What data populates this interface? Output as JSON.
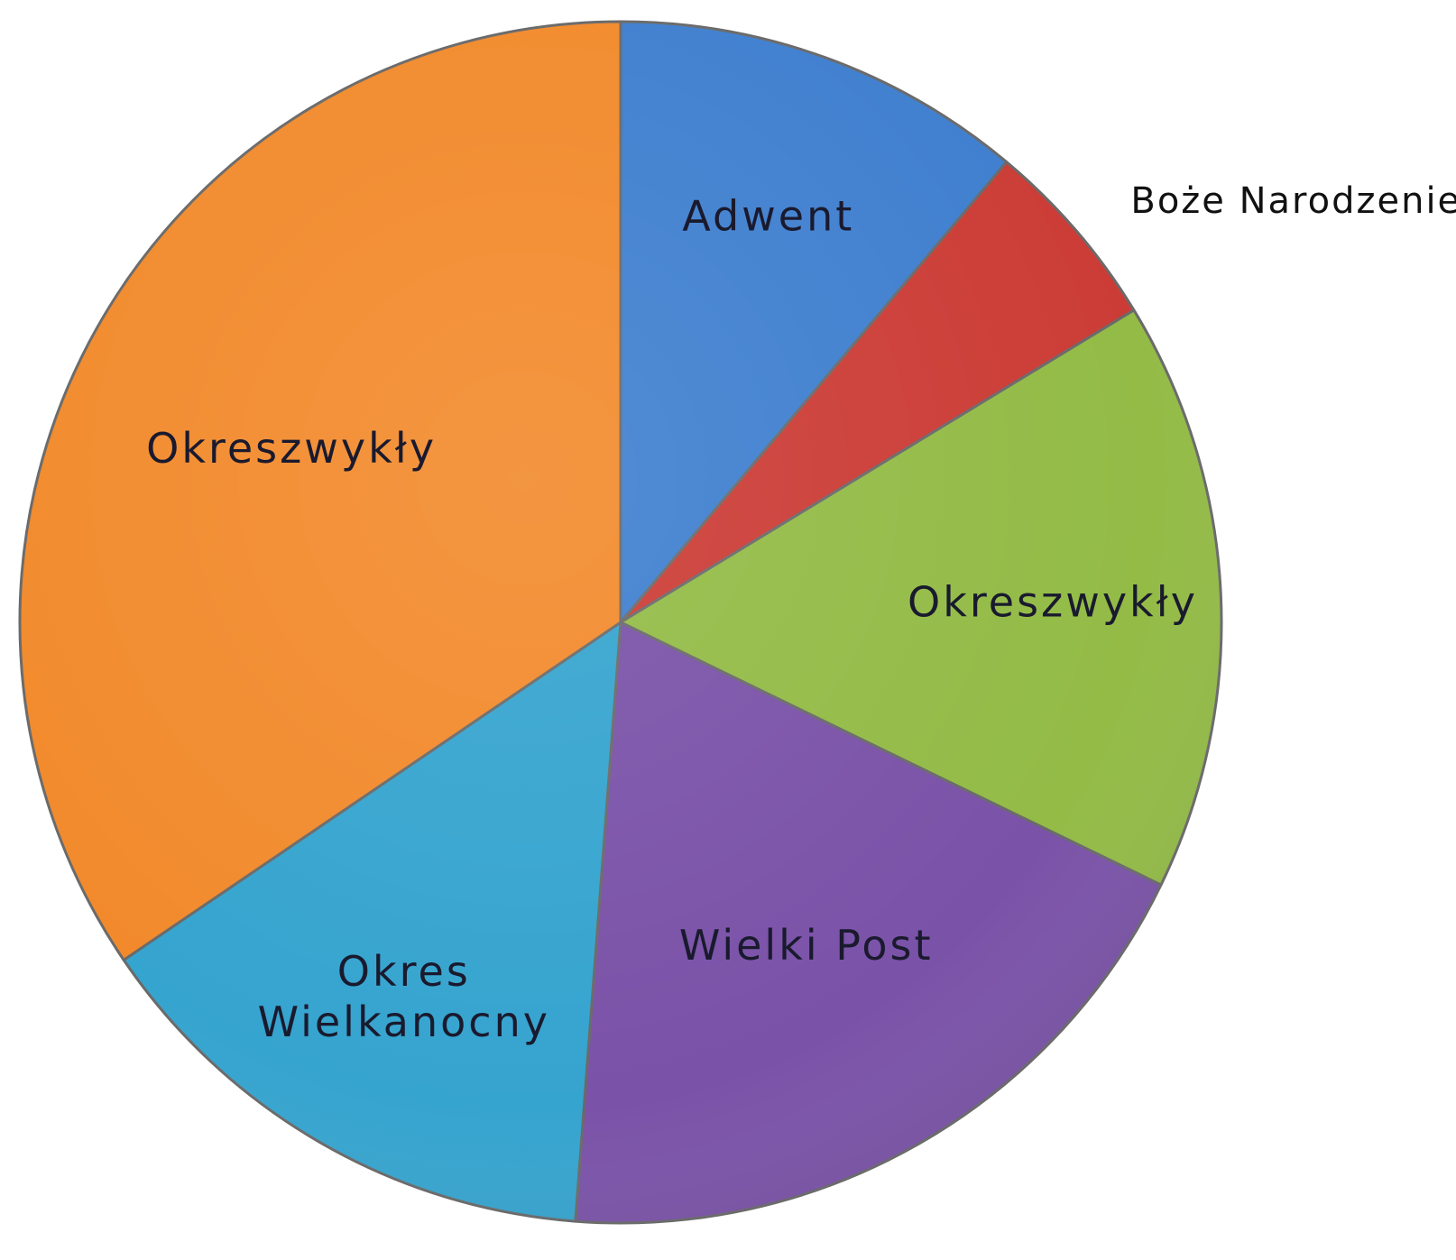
{
  "chart_data": {
    "type": "pie",
    "start_angle_deg": 0,
    "direction": "clockwise",
    "slices": [
      {
        "label": "Adwent",
        "value": 11.1,
        "color": "#3f7fcf"
      },
      {
        "label": "Boże Narodzenie",
        "value": 5.2,
        "color": "#cc3c36",
        "label_outside": true
      },
      {
        "label": "Okreszwykły",
        "value": 15.9,
        "color": "#93bb46"
      },
      {
        "label": "Wielki Post",
        "value": 19.0,
        "color": "#7a52a8"
      },
      {
        "label": "Okres Wielkanocny",
        "label_lines": [
          "Okres",
          "Wielkanocny"
        ],
        "value": 14.3,
        "color": "#35a4cf"
      },
      {
        "label": "Okreszwykły",
        "value": 34.5,
        "color": "#f28a2c"
      }
    ],
    "title": "",
    "legend": "none",
    "style": "3d-bevel"
  }
}
